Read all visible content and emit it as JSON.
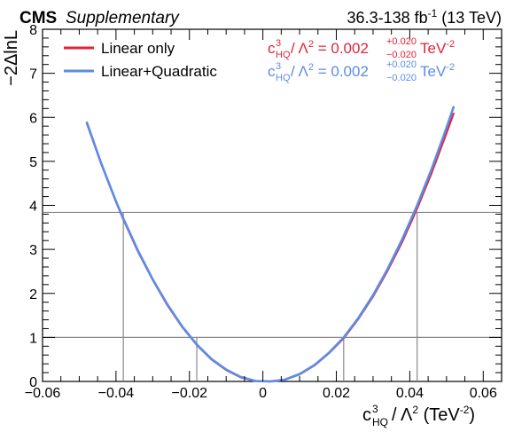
{
  "header": {
    "experiment": "CMS",
    "tag": "Supplementary",
    "lumi_main": "36.3-138 fb",
    "lumi_sup": "-1",
    "lumi_end": " (13 TeV)"
  },
  "colors": {
    "linear": "#e0243c",
    "quadratic": "#5b8ce6",
    "reference_line": "#888888"
  },
  "legend": [
    {
      "label": "Linear only",
      "color": "#e0243c"
    },
    {
      "label": "Linear+Quadratic",
      "color": "#5b8ce6"
    }
  ],
  "results": [
    {
      "coef": "c",
      "sup": "3",
      "sub": "HQ",
      "sep": " / Λ",
      "lam_sup": "2",
      "eq": " = 0.002",
      "up": "+0.020",
      "down": "−0.020",
      "unit": " TeV",
      "unit_sup": "-2",
      "color": "#e0243c"
    },
    {
      "coef": "c",
      "sup": "3",
      "sub": "HQ",
      "sep": " / Λ",
      "lam_sup": "2",
      "eq": " = 0.002",
      "up": "+0.020",
      "down": "−0.020",
      "unit": " TeV",
      "unit_sup": "-2",
      "color": "#5b8ce6"
    }
  ],
  "axes": {
    "ylabel": "−2ΔlnL",
    "xlabel": {
      "coef": "c",
      "sup": "3",
      "sub": "HQ",
      "sep": " / Λ",
      "lam_sup": "2",
      "unit_open": " (TeV",
      "unit_sup": "-2",
      "unit_close": ")"
    },
    "xticks": [
      "−0.06",
      "−0.04",
      "−0.02",
      "0",
      "0.02",
      "0.04",
      "0.06"
    ],
    "yticks": [
      "0",
      "1",
      "2",
      "3",
      "4",
      "5",
      "6",
      "7",
      "8"
    ]
  },
  "chart_data": {
    "type": "line",
    "xlim": [
      -0.06,
      0.065
    ],
    "ylim": [
      0,
      8
    ],
    "x_ticks": [
      -0.06,
      -0.04,
      -0.02,
      0,
      0.02,
      0.04,
      0.06
    ],
    "y_ticks": [
      0,
      1,
      2,
      3,
      4,
      5,
      6,
      7,
      8
    ],
    "reference_lines_y": [
      1,
      3.84
    ],
    "interval_lines_x": [
      -0.038,
      -0.018,
      0.022,
      0.042
    ],
    "series": [
      {
        "name": "Linear only",
        "x": [
          -0.048,
          -0.044,
          -0.04,
          -0.038,
          -0.034,
          -0.03,
          -0.026,
          -0.022,
          -0.018,
          -0.014,
          -0.01,
          -0.006,
          -0.002,
          0.002,
          0.006,
          0.01,
          0.014,
          0.018,
          0.022,
          0.026,
          0.03,
          0.034,
          0.038,
          0.042,
          0.046,
          0.05,
          0.052
        ],
        "y": [
          5.88,
          4.94,
          4.08,
          3.68,
          2.95,
          2.31,
          1.73,
          1.24,
          0.83,
          0.5,
          0.26,
          0.09,
          0.01,
          0.0,
          0.04,
          0.16,
          0.36,
          0.64,
          0.98,
          1.42,
          1.93,
          2.52,
          3.18,
          3.93,
          4.75,
          5.64,
          6.1
        ]
      },
      {
        "name": "Linear+Quadratic",
        "x": [
          -0.048,
          -0.044,
          -0.04,
          -0.038,
          -0.034,
          -0.03,
          -0.026,
          -0.022,
          -0.018,
          -0.014,
          -0.01,
          -0.006,
          -0.002,
          0.002,
          0.006,
          0.01,
          0.014,
          0.018,
          0.022,
          0.026,
          0.03,
          0.034,
          0.038,
          0.042,
          0.046,
          0.05,
          0.052
        ],
        "y": [
          5.9,
          4.95,
          4.09,
          3.7,
          2.97,
          2.32,
          1.75,
          1.25,
          0.84,
          0.51,
          0.27,
          0.1,
          0.01,
          0.0,
          0.04,
          0.17,
          0.37,
          0.65,
          1.0,
          1.44,
          1.96,
          2.56,
          3.24,
          4.0,
          4.84,
          5.76,
          6.25
        ]
      }
    ]
  }
}
